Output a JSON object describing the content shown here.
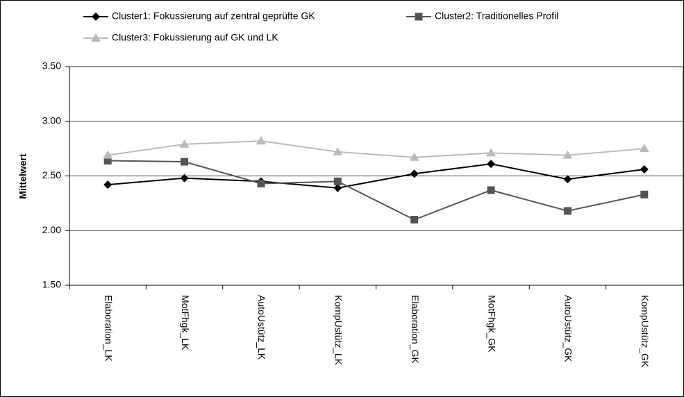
{
  "chart_data": {
    "type": "line",
    "y_label": "Mittelwert",
    "categories": [
      "Elaboration_LK",
      "MotFhgk_LK",
      "AutoUstütz_LK",
      "KompUstütz_LK",
      "Elaboration_GK",
      "MotFhgk_GK",
      "AutoUstütz_GK",
      "KompUstütz_GK"
    ],
    "series": [
      {
        "name": "Cluster1: Fokussierung auf zentral geprüfte GK",
        "color": "#000000",
        "marker": "diamond",
        "values": [
          2.42,
          2.48,
          2.45,
          2.39,
          2.52,
          2.61,
          2.47,
          2.56
        ]
      },
      {
        "name": "Cluster2: Traditionelles Profil",
        "color": "#555555",
        "marker": "square",
        "values": [
          2.64,
          2.63,
          2.43,
          2.45,
          2.1,
          2.37,
          2.18,
          2.33
        ]
      },
      {
        "name": "Cluster3: Fokussierung auf GK und LK",
        "color": "#bbbbbb",
        "marker": "triangle",
        "values": [
          2.69,
          2.79,
          2.82,
          2.72,
          2.67,
          2.71,
          2.69,
          2.75
        ]
      }
    ],
    "ylim": [
      1.5,
      3.5
    ],
    "yticks": [
      {
        "value": 1.5,
        "label": "1.50"
      },
      {
        "value": 2.0,
        "label": "2.00"
      },
      {
        "value": 2.5,
        "label": "2.50"
      },
      {
        "value": 3.0,
        "label": "3.00"
      },
      {
        "value": 3.5,
        "label": "3.50"
      }
    ],
    "grid": true
  }
}
